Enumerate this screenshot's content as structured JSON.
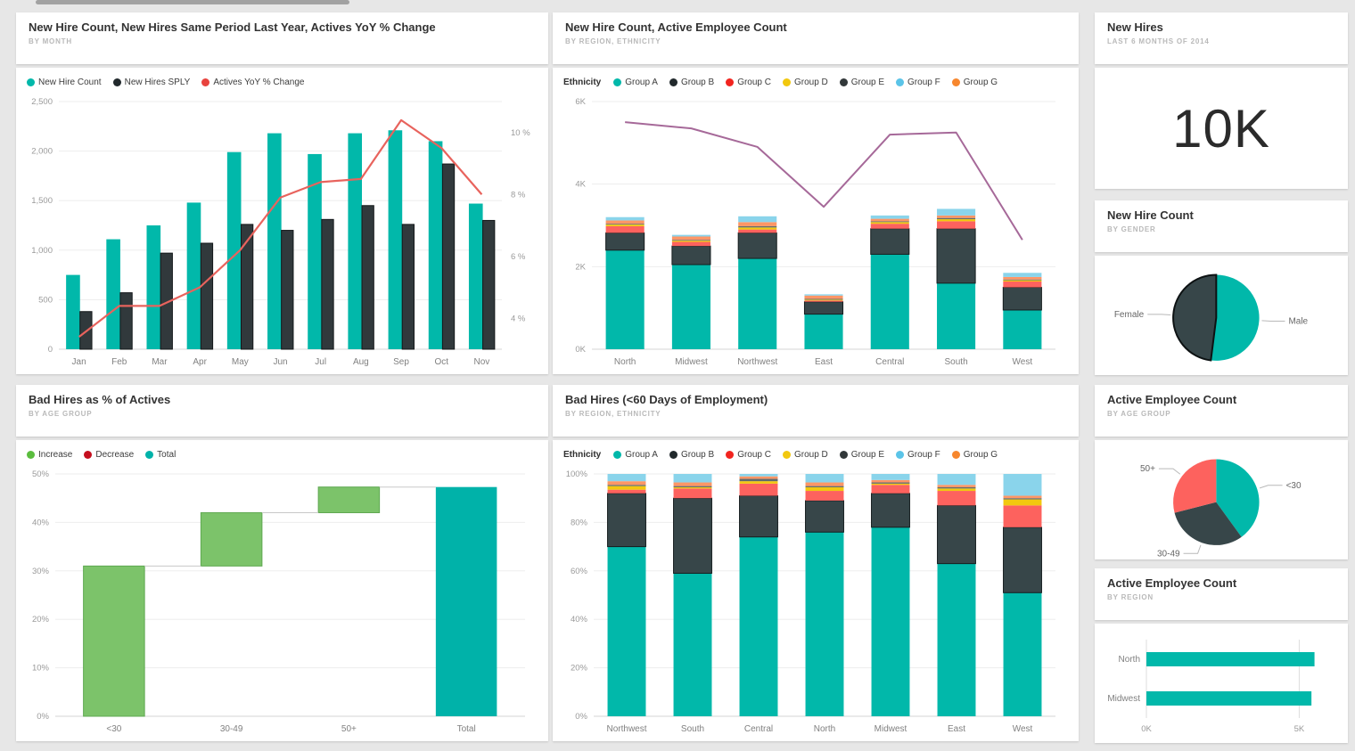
{
  "page": {
    "background": "#e7e7e7",
    "scrollbar_color": "#a2a2a2",
    "accent_teal": "#01B8AA",
    "accent_dark": "#374649",
    "accent_red": "#FD625E",
    "accent_purple": "#A66999",
    "accent_green": "#7CC36A"
  },
  "chart_data": [
    {
      "id": "combo-month",
      "type": "combo_bar_line",
      "title": "New Hire Count, New Hires Same Period Last Year, Actives YoY % Change",
      "subtitle": "BY MONTH",
      "categories": [
        "Jan",
        "Feb",
        "Mar",
        "Apr",
        "May",
        "Jun",
        "Jul",
        "Aug",
        "Sep",
        "Oct",
        "Nov"
      ],
      "legend": [
        {
          "label": "New Hire Count",
          "color": "#01B8AA"
        },
        {
          "label": "New Hires SPLY",
          "color": "#21292C"
        },
        {
          "label": "Actives YoY % Change",
          "color": "#E8433E"
        }
      ],
      "series": [
        {
          "name": "New Hire Count",
          "kind": "bar",
          "color": "#01B8AA",
          "values": [
            750,
            1110,
            1250,
            1480,
            1990,
            2180,
            1970,
            2180,
            2210,
            2100,
            1470
          ]
        },
        {
          "name": "New Hires SPLY",
          "kind": "bar",
          "color": "#31393C",
          "stroke": "#14181A",
          "values": [
            380,
            570,
            970,
            1070,
            1260,
            1200,
            1310,
            1450,
            1260,
            1870,
            1300
          ]
        },
        {
          "name": "Actives YoY % Change",
          "kind": "line",
          "axis": "right",
          "color": "#E8635D",
          "values": [
            3.4,
            4.4,
            4.4,
            5.0,
            6.2,
            7.9,
            8.4,
            8.5,
            10.4,
            9.5,
            8.0
          ]
        }
      ],
      "axis_left": {
        "min": 0,
        "max": 2500,
        "ticks": [
          {
            "v": 0,
            "label": "0"
          },
          {
            "v": 500,
            "label": "500"
          },
          {
            "v": 1000,
            "label": "1,000"
          },
          {
            "v": 1500,
            "label": "1,500"
          },
          {
            "v": 2000,
            "label": "2,000"
          },
          {
            "v": 2500,
            "label": "2,500"
          }
        ]
      },
      "axis_right": {
        "min": 3,
        "max": 11,
        "ticks": [
          {
            "v": 4,
            "label": "4 %"
          },
          {
            "v": 6,
            "label": "6 %"
          },
          {
            "v": 8,
            "label": "8 %"
          },
          {
            "v": 10,
            "label": "10 %"
          }
        ]
      }
    },
    {
      "id": "stacked-region",
      "type": "stacked_bar_line",
      "title": "New Hire Count, Active Employee Count",
      "subtitle": "BY REGION, ETHNICITY",
      "legend_title": "Ethnicity",
      "categories": [
        "North",
        "Midwest",
        "Northwest",
        "East",
        "Central",
        "South",
        "West"
      ],
      "legend": [
        {
          "label": "Group A",
          "color": "#01B8AA"
        },
        {
          "label": "Group B",
          "color": "#21292C"
        },
        {
          "label": "Group C",
          "color": "#F2241F"
        },
        {
          "label": "Group D",
          "color": "#F2C80F"
        },
        {
          "label": "Group E",
          "color": "#32383A"
        },
        {
          "label": "Group F",
          "color": "#5BC4E8"
        },
        {
          "label": "Group G",
          "color": "#F7872E"
        }
      ],
      "stacks": [
        {
          "name": "Group A",
          "color": "#01B8AA",
          "values": [
            2.4,
            2.05,
            2.2,
            0.85,
            2.3,
            1.6,
            0.95
          ]
        },
        {
          "name": "Group B",
          "color": "#374649",
          "stroke": "#161D1F",
          "values": [
            0.42,
            0.45,
            0.62,
            0.3,
            0.62,
            1.32,
            0.55
          ]
        },
        {
          "name": "Group C",
          "color": "#FD625E",
          "values": [
            0.16,
            0.1,
            0.08,
            0.03,
            0.12,
            0.18,
            0.14
          ]
        },
        {
          "name": "Group D",
          "color": "#F2C80F",
          "values": [
            0.04,
            0.03,
            0.05,
            0.02,
            0.04,
            0.05,
            0.03
          ]
        },
        {
          "name": "Group E",
          "color": "#5F6B6D",
          "values": [
            0.02,
            0.02,
            0.03,
            0.02,
            0.02,
            0.03,
            0.02
          ]
        },
        {
          "name": "Group G",
          "color": "#FE9666",
          "values": [
            0.08,
            0.08,
            0.1,
            0.08,
            0.06,
            0.06,
            0.06
          ]
        },
        {
          "name": "Group F",
          "color": "#8AD4EB",
          "values": [
            0.08,
            0.04,
            0.14,
            0.03,
            0.08,
            0.16,
            0.1
          ]
        }
      ],
      "line": {
        "name": "Active Employee Count",
        "color": "#A66999",
        "values": [
          5.5,
          5.35,
          4.9,
          3.45,
          5.2,
          5.25,
          2.65
        ]
      },
      "axis_left": {
        "min": 0,
        "max": 6,
        "ticks": [
          {
            "v": 0,
            "label": "0K"
          },
          {
            "v": 2,
            "label": "2K"
          },
          {
            "v": 4,
            "label": "4K"
          },
          {
            "v": 6,
            "label": "6K"
          }
        ]
      }
    },
    {
      "id": "kpi-new-hires",
      "type": "kpi",
      "title": "New Hires",
      "subtitle": "LAST 6 MONTHS OF 2014",
      "value": "10K"
    },
    {
      "id": "pie-gender",
      "type": "pie",
      "title": "New Hire Count",
      "subtitle": "BY GENDER",
      "slices": [
        {
          "label": "Male",
          "value": 52,
          "color": "#01B8AA"
        },
        {
          "label": "Female",
          "value": 48,
          "color": "#374649",
          "stroke": "#0d1213"
        }
      ]
    },
    {
      "id": "waterfall-age",
      "type": "waterfall",
      "title": "Bad Hires as % of Actives",
      "subtitle": "BY AGE GROUP",
      "legend": [
        {
          "label": "Increase",
          "color": "#5BBD3E"
        },
        {
          "label": "Decrease",
          "color": "#C50F1F"
        },
        {
          "label": "Total",
          "color": "#00B2A9"
        }
      ],
      "categories": [
        "<30",
        "30-49",
        "50+",
        "Total"
      ],
      "bars": [
        {
          "category": "<30",
          "start": 0,
          "end": 31,
          "color": "#7CC36A",
          "stroke": "#5fa851"
        },
        {
          "category": "30-49",
          "start": 31,
          "end": 42,
          "color": "#7CC36A",
          "stroke": "#5fa851"
        },
        {
          "category": "50+",
          "start": 42,
          "end": 47.3,
          "color": "#7CC36A",
          "stroke": "#5fa851"
        },
        {
          "category": "Total",
          "start": 0,
          "end": 47.3,
          "color": "#00B2A9"
        }
      ],
      "axis_left": {
        "min": 0,
        "max": 50,
        "ticks": [
          {
            "v": 0,
            "label": "0%"
          },
          {
            "v": 10,
            "label": "10%"
          },
          {
            "v": 20,
            "label": "20%"
          },
          {
            "v": 30,
            "label": "30%"
          },
          {
            "v": 40,
            "label": "40%"
          },
          {
            "v": 50,
            "label": "50%"
          }
        ]
      }
    },
    {
      "id": "pct-stacked-region",
      "type": "stacked_bar_100",
      "title": "Bad Hires (<60 Days of Employment)",
      "subtitle": "BY REGION, ETHNICITY",
      "legend_title": "Ethnicity",
      "categories": [
        "Northwest",
        "South",
        "Central",
        "North",
        "Midwest",
        "East",
        "West"
      ],
      "legend": [
        {
          "label": "Group A",
          "color": "#01B8AA"
        },
        {
          "label": "Group B",
          "color": "#21292C"
        },
        {
          "label": "Group C",
          "color": "#F2241F"
        },
        {
          "label": "Group D",
          "color": "#F2C80F"
        },
        {
          "label": "Group E",
          "color": "#32383A"
        },
        {
          "label": "Group F",
          "color": "#5BC4E8"
        },
        {
          "label": "Group G",
          "color": "#F7872E"
        }
      ],
      "stacks": [
        {
          "name": "Group A",
          "color": "#01B8AA",
          "values": [
            70,
            59,
            74,
            76,
            78,
            63,
            51
          ]
        },
        {
          "name": "Group B",
          "color": "#374649",
          "stroke": "#161D1F",
          "values": [
            22,
            31,
            17,
            13,
            14,
            24,
            27
          ]
        },
        {
          "name": "Group C",
          "color": "#FD625E",
          "values": [
            1.5,
            4,
            5,
            4,
            3.5,
            6,
            9
          ]
        },
        {
          "name": "Group D",
          "color": "#F2C80F",
          "values": [
            1.5,
            0.5,
            1,
            1.5,
            0.5,
            1,
            2.5
          ]
        },
        {
          "name": "Group E",
          "color": "#5F6B6D",
          "values": [
            0.5,
            0.5,
            1,
            0.5,
            0.5,
            0.5,
            0.5
          ]
        },
        {
          "name": "Group G",
          "color": "#FE9666",
          "values": [
            1.5,
            1.5,
            1,
            1.5,
            1,
            1,
            1
          ]
        },
        {
          "name": "Group F",
          "color": "#8AD4EB",
          "values": [
            3,
            3.5,
            1,
            3.5,
            2.5,
            4.5,
            9
          ]
        }
      ],
      "axis_left": {
        "min": 0,
        "max": 100,
        "ticks": [
          {
            "v": 0,
            "label": "0%"
          },
          {
            "v": 20,
            "label": "20%"
          },
          {
            "v": 40,
            "label": "40%"
          },
          {
            "v": 60,
            "label": "60%"
          },
          {
            "v": 80,
            "label": "80%"
          },
          {
            "v": 100,
            "label": "100%"
          }
        ]
      }
    },
    {
      "id": "pie-age",
      "type": "pie",
      "title": "Active Employee Count",
      "subtitle": "BY AGE GROUP",
      "slices": [
        {
          "label": "<30",
          "value": 40,
          "color": "#01B8AA"
        },
        {
          "label": "30-49",
          "value": 31,
          "color": "#374649"
        },
        {
          "label": "50+",
          "value": 29,
          "color": "#FD625E"
        }
      ]
    },
    {
      "id": "hbar-region",
      "type": "hbar",
      "title": "Active Employee Count",
      "subtitle": "BY REGION",
      "categories": [
        "North",
        "Midwest"
      ],
      "values": [
        5.5,
        5.4
      ],
      "color": "#01B8AA",
      "axis_x": {
        "min": 0,
        "max": 5.6,
        "ticks": [
          {
            "v": 0,
            "label": "0K"
          },
          {
            "v": 5,
            "label": "5K"
          }
        ]
      }
    }
  ]
}
